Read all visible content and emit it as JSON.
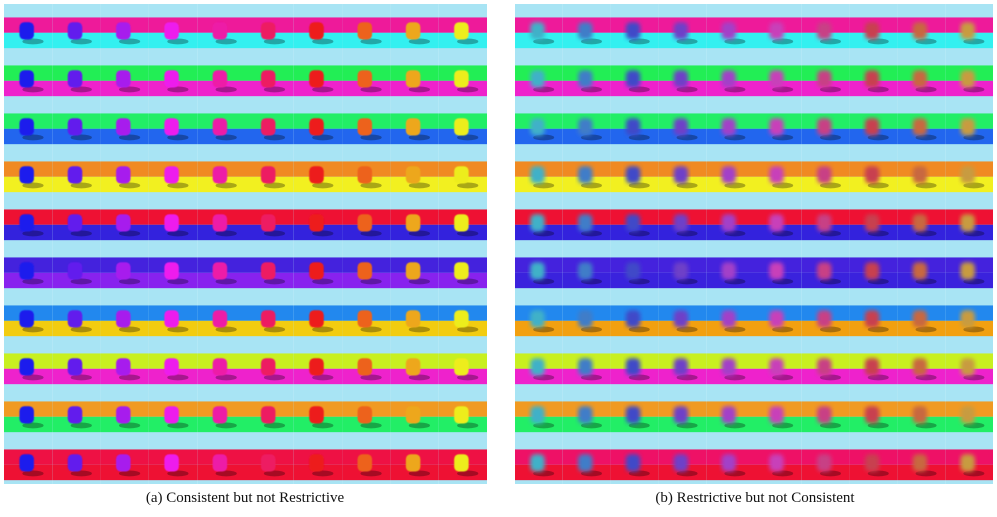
{
  "panels": [
    {
      "caption": "(a) Consistent but not Restrictive"
    },
    {
      "caption": "(b) Restrictive but not Consistent"
    }
  ]
}
